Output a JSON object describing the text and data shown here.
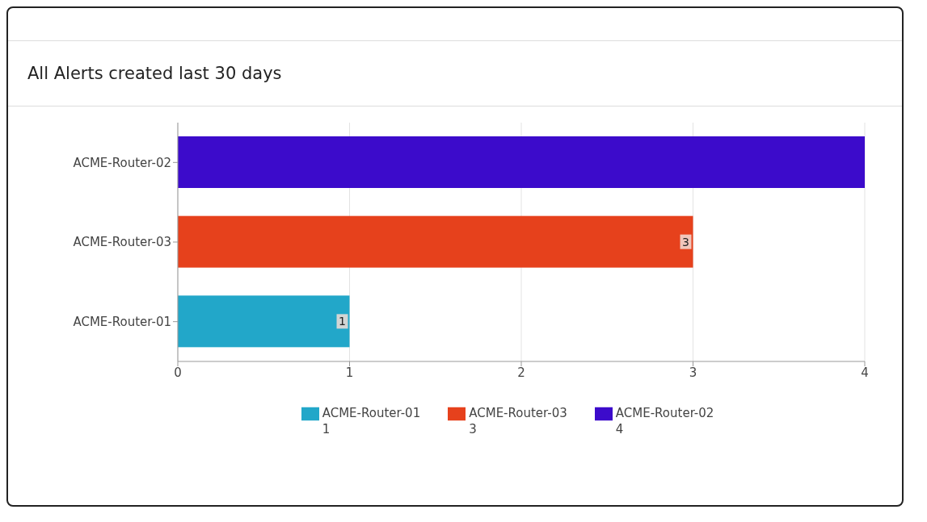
{
  "chart_data": {
    "type": "bar",
    "orientation": "horizontal",
    "stacked": true,
    "title": "All Alerts created last 30 days",
    "categories": [
      "ACME-Router-02",
      "ACME-Router-03",
      "ACME-Router-01"
    ],
    "series": [
      {
        "name": "ACME-Router-01\n1",
        "color": "#22a7c9",
        "values": [
          null,
          null,
          1
        ],
        "value_labels": [
          null,
          null,
          "1"
        ]
      },
      {
        "name": "ACME-Router-03\n3",
        "color": "#e6411c",
        "values": [
          null,
          3,
          null
        ],
        "value_labels": [
          null,
          "3",
          null
        ]
      },
      {
        "name": "ACME-Router-02\n4",
        "color": "#3c0bcb",
        "values": [
          4,
          null,
          null
        ],
        "value_labels": [
          null,
          null,
          null
        ]
      }
    ],
    "xlim": [
      0,
      4
    ],
    "xticks": [
      0,
      1,
      2,
      3,
      4
    ],
    "grid": "x",
    "legend": "bottom"
  }
}
